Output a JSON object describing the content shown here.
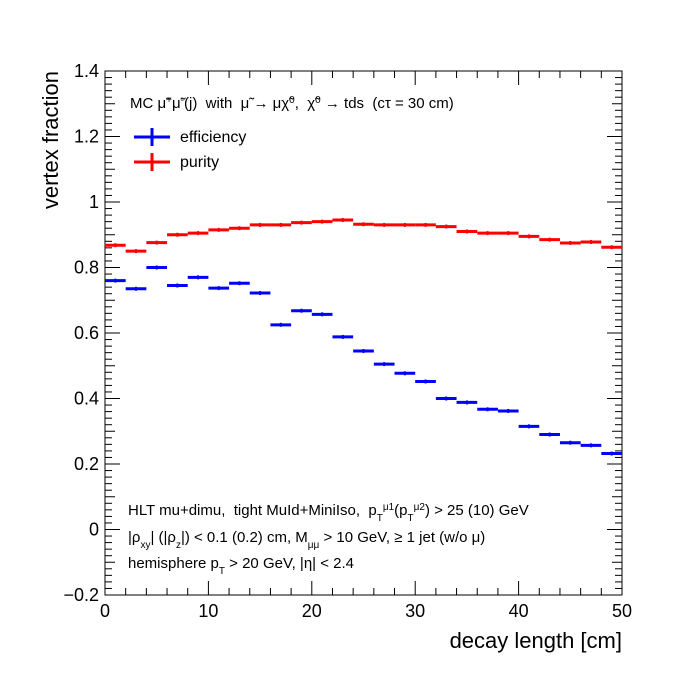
{
  "chart_data": {
    "type": "scatter",
    "xlabel": "decay length [cm]",
    "ylabel": "vertex fraction",
    "xlim": [
      0,
      50
    ],
    "ylim": [
      -0.2,
      1.4
    ],
    "x_ticks": [
      "0",
      "10",
      "20",
      "30",
      "40",
      "50"
    ],
    "y_ticks": [
      "−0.2",
      "0",
      "0.2",
      "0.4",
      "0.6",
      "0.8",
      "1",
      "1.2",
      "1.4"
    ],
    "x_tick_values": [
      0,
      10,
      20,
      30,
      40,
      50
    ],
    "y_tick_values": [
      -0.2,
      0,
      0.2,
      0.4,
      0.6,
      0.8,
      1.0,
      1.2,
      1.4
    ],
    "grid": false,
    "legend_position": "top-left",
    "bin_width": 2,
    "x": [
      1,
      3,
      5,
      7,
      9,
      11,
      13,
      15,
      17,
      19,
      21,
      23,
      25,
      27,
      29,
      31,
      33,
      35,
      37,
      39,
      41,
      43,
      45,
      47,
      49
    ],
    "series": [
      {
        "name": "efficiency",
        "color": "#0000ff",
        "values": [
          0.76,
          0.735,
          0.8,
          0.745,
          0.77,
          0.737,
          0.752,
          0.722,
          0.625,
          0.668,
          0.657,
          0.588,
          0.545,
          0.505,
          0.477,
          0.452,
          0.4,
          0.388,
          0.367,
          0.362,
          0.315,
          0.29,
          0.265,
          0.257,
          0.232
        ]
      },
      {
        "name": "purity",
        "color": "#ff0000",
        "values": [
          0.868,
          0.85,
          0.876,
          0.9,
          0.905,
          0.915,
          0.92,
          0.93,
          0.93,
          0.937,
          0.94,
          0.945,
          0.932,
          0.93,
          0.93,
          0.93,
          0.925,
          0.91,
          0.905,
          0.905,
          0.895,
          0.885,
          0.875,
          0.878,
          0.862
        ]
      }
    ],
    "annotations": {
      "header": "MC μ̃⁺μ̃⁻(j)  with  μ̃ → μχ̃⁰,  χ̃⁰ → tds  (cτ = 30 cm)",
      "selection_line1": "HLT mu+dimu,  tight MuId+MiniIso,  p_T^μ1(p_T^μ2) > 25 (10) GeV",
      "selection_line2": "|ρ_xy| (|ρ_z|) < 0.1 (0.2) cm, M_μμ > 10 GeV, ≥ 1 jet (w/o μ)",
      "selection_line3": "hemisphere p_T > 20 GeV, |η| < 2.4"
    }
  }
}
